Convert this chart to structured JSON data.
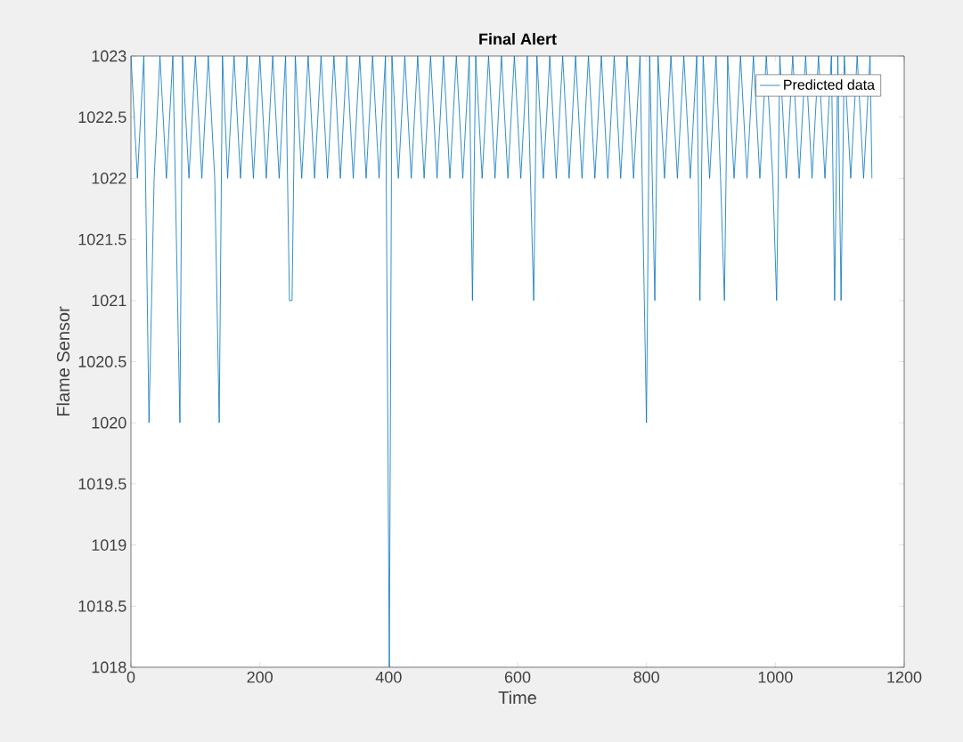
{
  "chart_data": {
    "type": "line",
    "title": "Final Alert",
    "xlabel": "Time",
    "ylabel": "Flame Sensor",
    "xlim": [
      0,
      1200
    ],
    "xticks": [
      0,
      200,
      400,
      600,
      800,
      1000,
      1200
    ],
    "ylim": [
      1018,
      1023
    ],
    "yticks": [
      1018,
      1018.5,
      1019,
      1019.5,
      1020,
      1020.5,
      1021,
      1021.5,
      1022,
      1022.5,
      1023
    ],
    "legend": "top right",
    "series": [
      {
        "name": "Predicted data",
        "color": "#0072bd",
        "x": [
          0,
          10,
          20,
          28,
          32,
          36,
          45,
          55,
          65,
          76,
          80,
          90,
          100,
          110,
          120,
          130,
          137,
          142,
          150,
          160,
          170,
          180,
          190,
          200,
          210,
          220,
          230,
          240,
          246,
          250,
          255,
          265,
          275,
          285,
          295,
          305,
          315,
          325,
          335,
          345,
          355,
          365,
          375,
          385,
          395,
          401,
          405,
          415,
          425,
          435,
          445,
          455,
          465,
          475,
          485,
          495,
          505,
          515,
          525,
          530,
          535,
          545,
          555,
          565,
          575,
          585,
          595,
          605,
          615,
          625,
          630,
          640,
          650,
          660,
          670,
          680,
          690,
          700,
          710,
          720,
          730,
          740,
          750,
          760,
          770,
          780,
          790,
          800,
          805,
          813,
          818,
          828,
          838,
          848,
          858,
          868,
          878,
          883,
          888,
          898,
          908,
          915,
          921,
          926,
          936,
          946,
          956,
          966,
          976,
          986,
          996,
          1002,
          1007,
          1017,
          1027,
          1037,
          1047,
          1057,
          1067,
          1077,
          1087,
          1092,
          1097,
          1102,
          1107,
          1117,
          1127,
          1137,
          1147,
          1150
        ],
        "values": [
          1023,
          1022,
          1023,
          1020,
          1021,
          1022,
          1023,
          1022,
          1023,
          1020,
          1023,
          1022,
          1023,
          1022,
          1023,
          1022,
          1020,
          1023,
          1022,
          1023,
          1022,
          1023,
          1022,
          1023,
          1022,
          1023,
          1022,
          1023,
          1021,
          1021,
          1023,
          1022,
          1023,
          1022,
          1023,
          1022,
          1023,
          1022,
          1023,
          1022,
          1023,
          1022,
          1023,
          1022,
          1023,
          1018,
          1023,
          1022,
          1023,
          1022,
          1023,
          1022,
          1023,
          1022,
          1023,
          1022,
          1023,
          1022,
          1023,
          1021,
          1023,
          1022,
          1023,
          1022,
          1023,
          1022,
          1023,
          1022,
          1023,
          1021,
          1023,
          1022,
          1023,
          1022,
          1023,
          1022,
          1023,
          1022,
          1023,
          1022,
          1023,
          1022,
          1023,
          1022,
          1023,
          1022,
          1023,
          1020,
          1023,
          1021,
          1023,
          1022,
          1023,
          1022,
          1023,
          1022,
          1023,
          1021,
          1023,
          1022,
          1023,
          1022,
          1021,
          1023,
          1022,
          1023,
          1022,
          1023,
          1022,
          1023,
          1022,
          1021,
          1023,
          1022,
          1023,
          1022,
          1023,
          1022,
          1023,
          1022,
          1023,
          1021,
          1023,
          1021,
          1023,
          1022,
          1023,
          1022,
          1023,
          1022
        ]
      }
    ]
  }
}
